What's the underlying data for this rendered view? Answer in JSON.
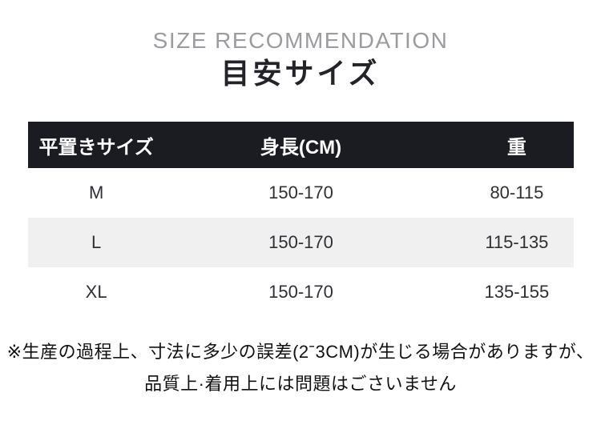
{
  "page": {
    "subtitle_en": "SIZE RECOMMENDATION",
    "title_jp": "目安サイズ"
  },
  "size_table": {
    "columns": [
      {
        "label": "平置きサイズ"
      },
      {
        "label": "身長(CM)"
      },
      {
        "label": "重"
      }
    ],
    "rows": [
      {
        "size": "M",
        "height_cm": "150-170",
        "weight": "80-115"
      },
      {
        "size": "L",
        "height_cm": "150-170",
        "weight": "115-135"
      },
      {
        "size": "XL",
        "height_cm": "150-170",
        "weight": "135-155"
      }
    ]
  },
  "footnote": {
    "line1": "※生産の過程上、寸法に多少の誤差(2ˉ3CM)が生じる場合がありますが、",
    "line2": "品質上·着用上には問題はごさいません"
  },
  "colors": {
    "header_bar_bg": "#1b1b22",
    "header_bar_text": "#ffffff",
    "alt_row_bg": "#f0f0f1",
    "subtitle_text": "#9b9ba0",
    "title_text": "#232329",
    "cell_text": "#2f2f35",
    "footnote_text": "#111111"
  }
}
